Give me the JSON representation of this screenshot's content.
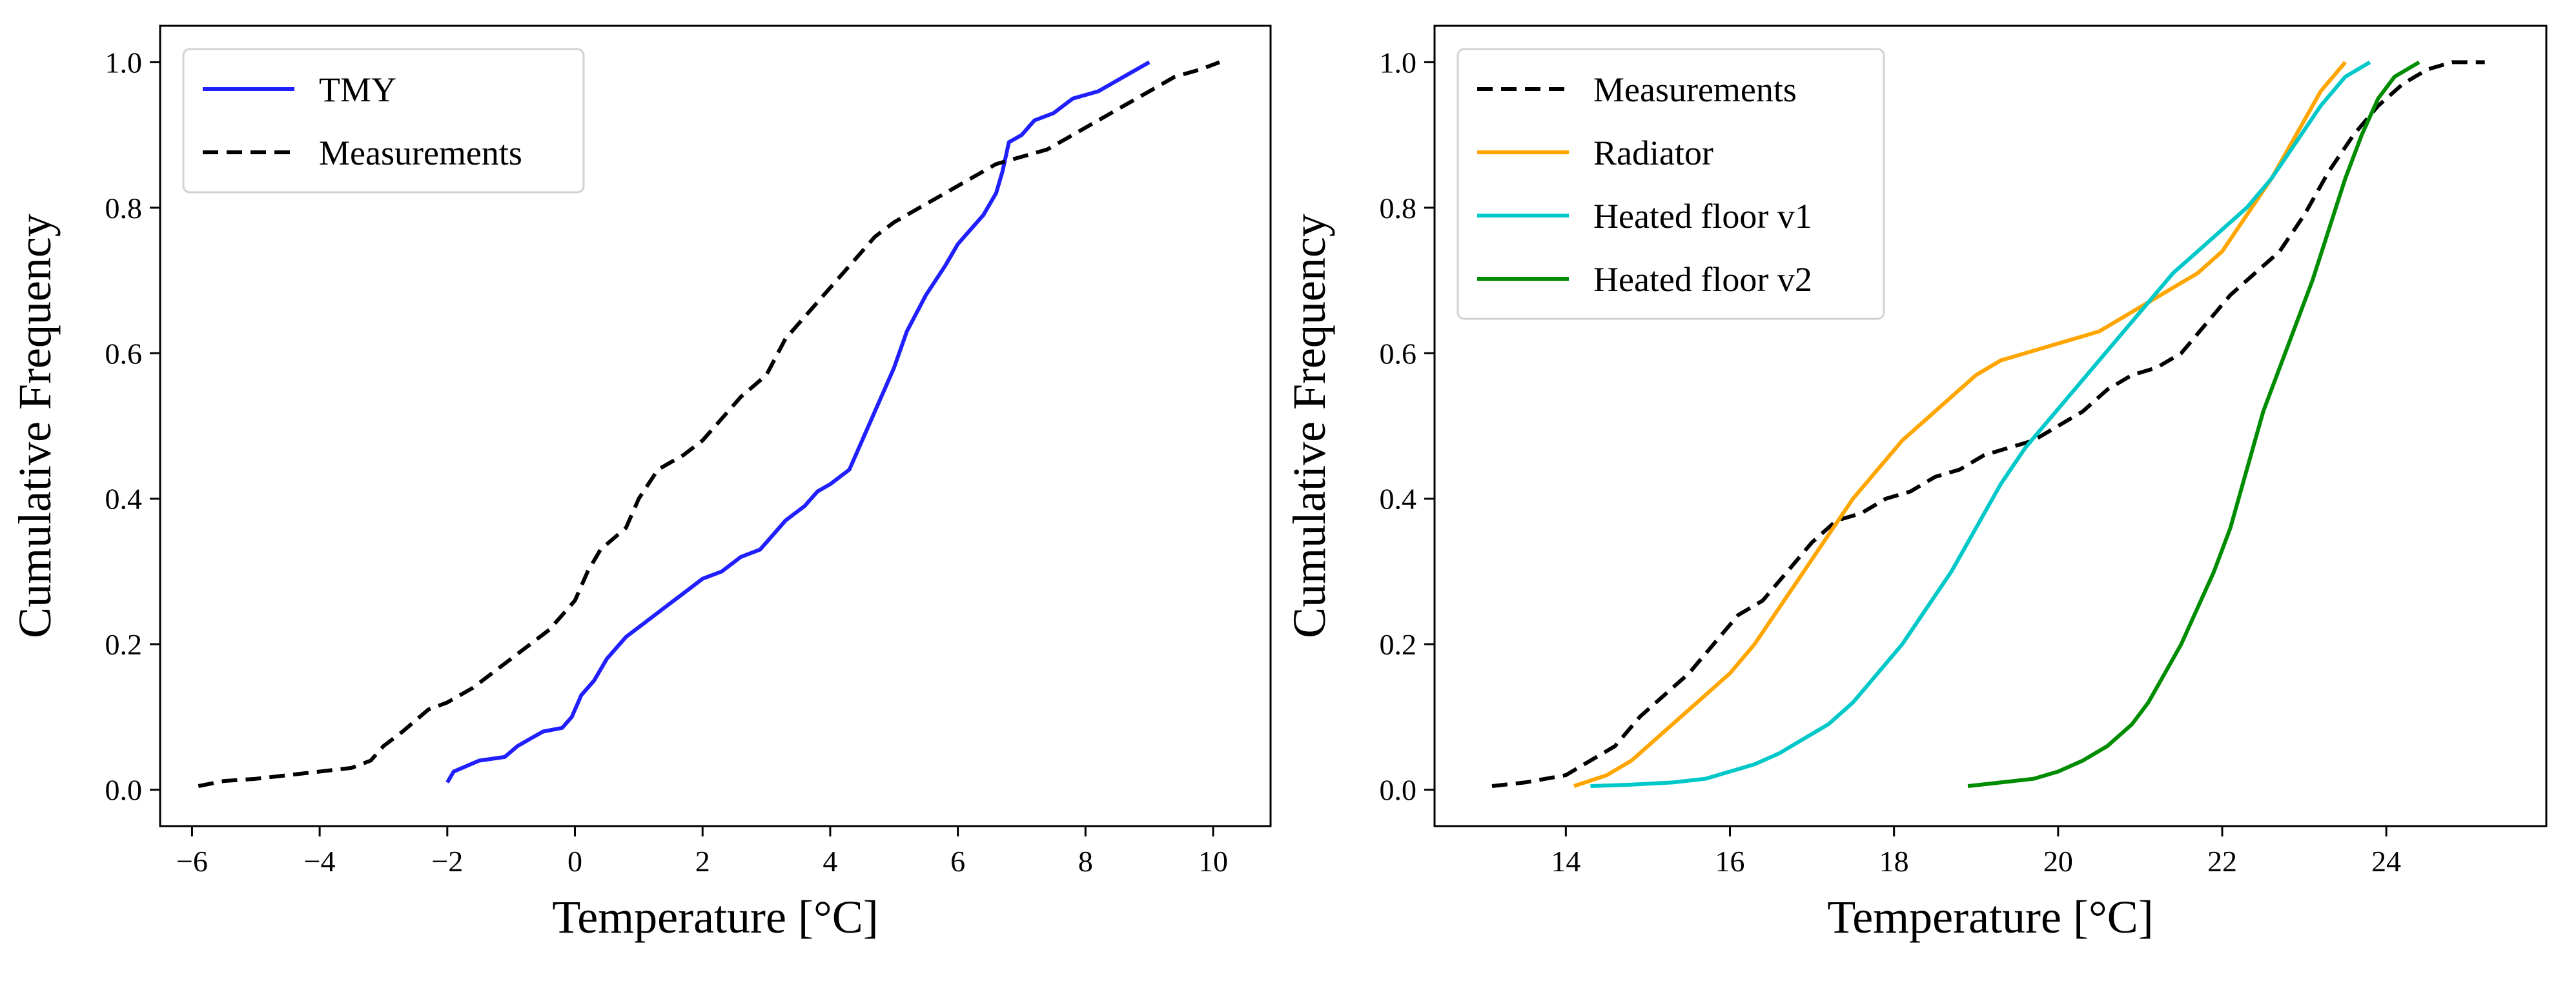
{
  "chart_data": [
    {
      "type": "line",
      "xlabel": "Temperature [°C]",
      "ylabel": "Cumulative Frequency",
      "xlim": [
        -6.5,
        10.9
      ],
      "ylim": [
        -0.05,
        1.05
      ],
      "xticks": [
        -6,
        -4,
        -2,
        0,
        2,
        4,
        6,
        8,
        10
      ],
      "xtick_labels": [
        "−6",
        "−4",
        "−2",
        "0",
        "2",
        "4",
        "6",
        "8",
        "10"
      ],
      "yticks": [
        0.0,
        0.2,
        0.4,
        0.6,
        0.8,
        1.0
      ],
      "ytick_labels": [
        "0.0",
        "0.2",
        "0.4",
        "0.6",
        "0.8",
        "1.0"
      ],
      "grid": false,
      "legend_position": "top-left",
      "series": [
        {
          "name": "TMY",
          "color": "#1f1fff",
          "style": "solid",
          "x": [
            -2.0,
            -1.9,
            -1.5,
            -1.1,
            -0.9,
            -0.7,
            -0.5,
            -0.2,
            -0.05,
            0.1,
            0.3,
            0.5,
            0.8,
            1.1,
            1.4,
            1.7,
            2.0,
            2.3,
            2.6,
            2.9,
            3.1,
            3.3,
            3.6,
            3.8,
            4.0,
            4.3,
            4.5,
            4.7,
            4.9,
            5.0,
            5.2,
            5.5,
            5.8,
            6.0,
            6.2,
            6.4,
            6.6,
            6.7,
            6.8,
            7.0,
            7.2,
            7.5,
            7.8,
            8.2,
            8.6,
            9.0
          ],
          "y": [
            0.01,
            0.025,
            0.04,
            0.045,
            0.06,
            0.07,
            0.08,
            0.085,
            0.1,
            0.13,
            0.15,
            0.18,
            0.21,
            0.23,
            0.25,
            0.27,
            0.29,
            0.3,
            0.32,
            0.33,
            0.35,
            0.37,
            0.39,
            0.41,
            0.42,
            0.44,
            0.48,
            0.52,
            0.56,
            0.58,
            0.63,
            0.68,
            0.72,
            0.75,
            0.77,
            0.79,
            0.82,
            0.85,
            0.89,
            0.9,
            0.92,
            0.93,
            0.95,
            0.96,
            0.98,
            1.0
          ]
        },
        {
          "name": "Measurements",
          "color": "#000000",
          "style": "dashed",
          "x": [
            -5.9,
            -5.5,
            -5.0,
            -4.5,
            -4.0,
            -3.5,
            -3.2,
            -3.0,
            -2.7,
            -2.3,
            -2.0,
            -1.6,
            -1.3,
            -1.0,
            -0.7,
            -0.4,
            0.0,
            0.2,
            0.4,
            0.8,
            1.0,
            1.3,
            1.7,
            2.0,
            2.3,
            2.6,
            3.0,
            3.3,
            3.7,
            4.0,
            4.3,
            4.7,
            5.0,
            5.4,
            5.8,
            6.2,
            6.6,
            7.0,
            7.4,
            7.8,
            8.2,
            8.6,
            9.0,
            9.4,
            9.8,
            10.1
          ],
          "y": [
            0.005,
            0.012,
            0.015,
            0.02,
            0.025,
            0.03,
            0.04,
            0.06,
            0.08,
            0.11,
            0.12,
            0.14,
            0.16,
            0.18,
            0.2,
            0.22,
            0.26,
            0.3,
            0.33,
            0.36,
            0.4,
            0.44,
            0.46,
            0.48,
            0.51,
            0.54,
            0.57,
            0.62,
            0.66,
            0.69,
            0.72,
            0.76,
            0.78,
            0.8,
            0.82,
            0.84,
            0.86,
            0.87,
            0.88,
            0.9,
            0.92,
            0.94,
            0.96,
            0.98,
            0.99,
            1.0
          ]
        }
      ]
    },
    {
      "type": "line",
      "xlabel": "Temperature [°C]",
      "ylabel": "Cumulative Frequency",
      "xlim": [
        12.4,
        25.95
      ],
      "ylim": [
        -0.05,
        1.05
      ],
      "xticks": [
        14,
        16,
        18,
        20,
        22,
        24
      ],
      "xtick_labels": [
        "14",
        "16",
        "18",
        "20",
        "22",
        "24"
      ],
      "yticks": [
        0.0,
        0.2,
        0.4,
        0.6,
        0.8,
        1.0
      ],
      "ytick_labels": [
        "0.0",
        "0.2",
        "0.4",
        "0.6",
        "0.8",
        "1.0"
      ],
      "grid": false,
      "legend_position": "top-left",
      "series": [
        {
          "name": "Measurements",
          "color": "#000000",
          "style": "dashed",
          "x": [
            13.1,
            13.5,
            14.0,
            14.3,
            14.6,
            14.9,
            15.2,
            15.5,
            15.8,
            16.1,
            16.4,
            16.7,
            17.0,
            17.3,
            17.6,
            17.9,
            18.2,
            18.5,
            18.8,
            19.1,
            19.4,
            19.7,
            20.0,
            20.3,
            20.6,
            20.9,
            21.2,
            21.5,
            21.8,
            22.1,
            22.4,
            22.7,
            23.0,
            23.3,
            23.6,
            23.9,
            24.2,
            24.5,
            24.8,
            25.2
          ],
          "y": [
            0.005,
            0.01,
            0.02,
            0.04,
            0.06,
            0.1,
            0.13,
            0.16,
            0.2,
            0.24,
            0.26,
            0.3,
            0.34,
            0.37,
            0.38,
            0.4,
            0.41,
            0.43,
            0.44,
            0.46,
            0.47,
            0.48,
            0.5,
            0.52,
            0.55,
            0.57,
            0.58,
            0.6,
            0.64,
            0.68,
            0.71,
            0.74,
            0.79,
            0.85,
            0.9,
            0.94,
            0.97,
            0.99,
            1.0,
            1.0
          ]
        },
        {
          "name": "Radiator",
          "color": "#ffa500",
          "style": "solid",
          "x": [
            14.1,
            14.5,
            14.8,
            15.1,
            15.4,
            15.7,
            16.0,
            16.3,
            16.6,
            16.9,
            17.2,
            17.5,
            17.8,
            18.1,
            18.4,
            18.7,
            19.0,
            19.3,
            19.6,
            19.9,
            20.2,
            20.5,
            20.8,
            21.1,
            21.4,
            21.7,
            22.0,
            22.3,
            22.6,
            22.9,
            23.2,
            23.5
          ],
          "y": [
            0.005,
            0.02,
            0.04,
            0.07,
            0.1,
            0.13,
            0.16,
            0.2,
            0.25,
            0.3,
            0.35,
            0.4,
            0.44,
            0.48,
            0.51,
            0.54,
            0.57,
            0.59,
            0.6,
            0.61,
            0.62,
            0.63,
            0.65,
            0.67,
            0.69,
            0.71,
            0.74,
            0.79,
            0.84,
            0.9,
            0.96,
            1.0
          ]
        },
        {
          "name": "Heated floor v1",
          "color": "#00c8c8",
          "style": "solid",
          "x": [
            14.3,
            14.8,
            15.3,
            15.7,
            16.0,
            16.3,
            16.6,
            16.9,
            17.2,
            17.5,
            17.8,
            18.1,
            18.4,
            18.7,
            19.0,
            19.3,
            19.6,
            19.9,
            20.2,
            20.5,
            20.8,
            21.1,
            21.4,
            21.7,
            22.0,
            22.3,
            22.6,
            22.9,
            23.2,
            23.5,
            23.8
          ],
          "y": [
            0.005,
            0.007,
            0.01,
            0.015,
            0.025,
            0.035,
            0.05,
            0.07,
            0.09,
            0.12,
            0.16,
            0.2,
            0.25,
            0.3,
            0.36,
            0.42,
            0.47,
            0.51,
            0.55,
            0.59,
            0.63,
            0.67,
            0.71,
            0.74,
            0.77,
            0.8,
            0.84,
            0.89,
            0.94,
            0.98,
            1.0
          ]
        },
        {
          "name": "Heated floor v2",
          "color": "#008c00",
          "style": "solid",
          "x": [
            18.9,
            19.3,
            19.7,
            20.0,
            20.3,
            20.6,
            20.9,
            21.1,
            21.3,
            21.5,
            21.7,
            21.9,
            22.1,
            22.3,
            22.5,
            22.7,
            22.9,
            23.1,
            23.3,
            23.5,
            23.7,
            23.9,
            24.1,
            24.4
          ],
          "y": [
            0.005,
            0.01,
            0.015,
            0.025,
            0.04,
            0.06,
            0.09,
            0.12,
            0.16,
            0.2,
            0.25,
            0.3,
            0.36,
            0.44,
            0.52,
            0.58,
            0.64,
            0.7,
            0.77,
            0.84,
            0.9,
            0.95,
            0.98,
            1.0
          ]
        }
      ]
    }
  ]
}
